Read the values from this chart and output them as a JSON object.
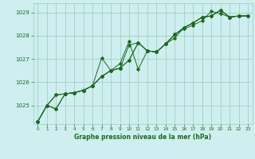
{
  "title": "Graphe pression niveau de la mer (hPa)",
  "bg_color": "#ceeef0",
  "line_color": "#1a6b1a",
  "grid_color": "#99ccbb",
  "xlim": [
    -0.5,
    23.5
  ],
  "ylim": [
    1024.2,
    1029.4
  ],
  "yticks": [
    1025,
    1026,
    1027,
    1028,
    1029
  ],
  "xticks": [
    0,
    1,
    2,
    3,
    4,
    5,
    6,
    7,
    8,
    9,
    10,
    11,
    12,
    13,
    14,
    15,
    16,
    17,
    18,
    19,
    20,
    21,
    22,
    23
  ],
  "series": [
    [
      1024.3,
      1025.0,
      1024.85,
      1025.5,
      1025.55,
      1025.65,
      1025.85,
      1027.05,
      1026.5,
      1026.8,
      1027.75,
      1026.55,
      1027.35,
      1027.3,
      1027.65,
      1027.9,
      1028.35,
      1028.55,
      1028.8,
      1028.85,
      1029.1,
      1028.8,
      1028.85,
      1028.85
    ],
    [
      1024.3,
      1025.0,
      1024.85,
      1025.5,
      1025.55,
      1025.65,
      1025.85,
      1026.25,
      1026.5,
      1026.6,
      1027.6,
      1027.7,
      1027.35,
      1027.3,
      1027.65,
      1028.05,
      1028.35,
      1028.55,
      1028.8,
      1028.85,
      1029.1,
      1028.8,
      1028.85,
      1028.85
    ],
    [
      1024.3,
      1025.0,
      1025.45,
      1025.5,
      1025.55,
      1025.65,
      1025.85,
      1026.25,
      1026.5,
      1026.6,
      1026.95,
      1027.7,
      1027.35,
      1027.3,
      1027.65,
      1028.05,
      1028.35,
      1028.55,
      1028.8,
      1028.85,
      1029.1,
      1028.8,
      1028.85,
      1028.85
    ],
    [
      1024.3,
      1025.0,
      1025.45,
      1025.5,
      1025.55,
      1025.65,
      1025.85,
      1026.25,
      1026.5,
      1026.6,
      1026.95,
      1027.7,
      1027.35,
      1027.3,
      1027.65,
      1028.05,
      1028.3,
      1028.45,
      1028.65,
      1029.05,
      1028.95,
      1028.8,
      1028.85,
      1028.85
    ]
  ]
}
